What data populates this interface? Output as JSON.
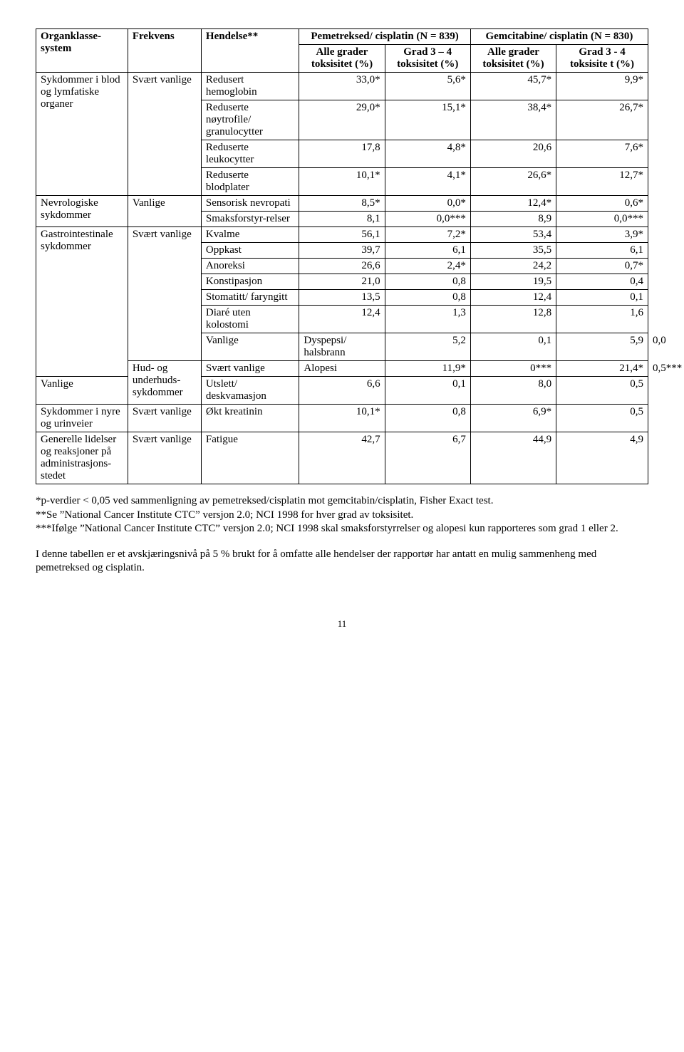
{
  "table": {
    "header": {
      "col1": "Organklasse-system",
      "col2": "Frekvens",
      "col3": "Hendelse**",
      "group1": "Pemetreksed/ cisplatin (N = 839)",
      "group2": "Gemcitabine/ cisplatin (N = 830)",
      "sub": {
        "g1a": "Alle grader toksisitet (%)",
        "g1b": "Grad 3 – 4 toksisitet (%)",
        "g2a": "Alle grader toksisitet (%)",
        "g2b": "Grad 3 - 4 toksisite t (%)"
      }
    },
    "rows": [
      {
        "sys": "Sykdommer i blod og lymfatiske organer",
        "sys_rowspan": 4,
        "freq": "Svært vanlige",
        "freq_rowspan": 4,
        "event": "Redusert hemoglobin",
        "v": [
          "33,0*",
          "5,6*",
          "45,7*",
          "9,9*"
        ]
      },
      {
        "event": "Reduserte nøytrofile/ granulocytter",
        "v": [
          "29,0*",
          "15,1*",
          "38,4*",
          "26,7*"
        ]
      },
      {
        "event": "Reduserte leukocytter",
        "v": [
          "17,8",
          "4,8*",
          "20,6",
          "7,6*"
        ]
      },
      {
        "event": "Reduserte blodplater",
        "v": [
          "10,1*",
          "4,1*",
          "26,6*",
          "12,7*"
        ]
      },
      {
        "sys": "Nevrologiske sykdommer",
        "sys_rowspan": 2,
        "freq": "Vanlige",
        "freq_rowspan": 2,
        "event": "Sensorisk nevropati",
        "v": [
          "8,5*",
          "0,0*",
          "12,4*",
          "0,6*"
        ]
      },
      {
        "event": "Smaksforstyr-relser",
        "v": [
          "8,1",
          "0,0***",
          "8,9",
          "0,0***"
        ]
      },
      {
        "sys": "Gastrointestinale sykdommer",
        "sys_rowspan": 8,
        "freq": "Svært vanlige",
        "freq_rowspan": 7,
        "event": "Kvalme",
        "v": [
          "56,1",
          "7,2*",
          "53,4",
          "3,9*"
        ]
      },
      {
        "event": "Oppkast",
        "v": [
          "39,7",
          "6,1",
          "35,5",
          "6,1"
        ]
      },
      {
        "event": "Anoreksi",
        "v": [
          "26,6",
          "2,4*",
          "24,2",
          "0,7*"
        ]
      },
      {
        "event": "Konstipasjon",
        "v": [
          "21,0",
          "0,8",
          "19,5",
          "0,4"
        ]
      },
      {
        "event": "Stomatitt/ faryngitt",
        "v": [
          "13,5",
          "0,8",
          "12,4",
          "0,1"
        ]
      },
      {
        "event": "Diaré uten kolostomi",
        "v": [
          "12,4",
          "1,3",
          "12,8",
          "1,6"
        ]
      },
      {
        "freq": "Vanlige",
        "freq_rowspan": 1,
        "event": "Dyspepsi/ halsbrann",
        "v": [
          "5,2",
          "0,1",
          "5,9",
          "0,0"
        ]
      },
      {
        "sys": "Hud- og underhuds-sykdommer",
        "sys_rowspan": 2,
        "freq": "Svært vanlige",
        "freq_rowspan": 1,
        "event": "Alopesi",
        "v": [
          "11,9*",
          "0***",
          "21,4*",
          "0,5***"
        ]
      },
      {
        "freq": "Vanlige",
        "freq_rowspan": 1,
        "event": "Utslett/ deskvamasjon",
        "v": [
          "6,6",
          "0,1",
          "8,0",
          "0,5"
        ]
      },
      {
        "sys": "Sykdommer i nyre og urinveier",
        "sys_rowspan": 1,
        "freq": "Svært vanlige",
        "freq_rowspan": 1,
        "event": "Økt kreatinin",
        "v": [
          "10,1*",
          "0,8",
          "6,9*",
          "0,5"
        ]
      },
      {
        "sys": "Generelle lidelser og reaksjoner på administrasjons-stedet",
        "sys_rowspan": 1,
        "freq": "Svært vanlige",
        "freq_rowspan": 1,
        "event": "Fatigue",
        "v": [
          "42,7",
          "6,7",
          "44,9",
          "4,9"
        ]
      }
    ]
  },
  "footnotes": {
    "l1": "*p-verdier < 0,05 ved sammenligning av pemetreksed/cisplatin mot gemcitabin/cisplatin, Fisher Exact test.",
    "l2": "**Se ”National Cancer Institute CTC” versjon 2.0; NCI 1998 for hver grad av toksisitet.",
    "l3": "***Ifølge ”National Cancer Institute CTC” versjon 2.0; NCI 1998 skal smaksforstyrrelser og alopesi kun rapporteres som grad 1 eller 2."
  },
  "paragraph": "I denne tabellen er et avskjæringsnivå på 5 % brukt for å omfatte alle hendelser der rapportør har antatt en mulig sammenheng med pemetreksed og cisplatin.",
  "pagenum": "11"
}
